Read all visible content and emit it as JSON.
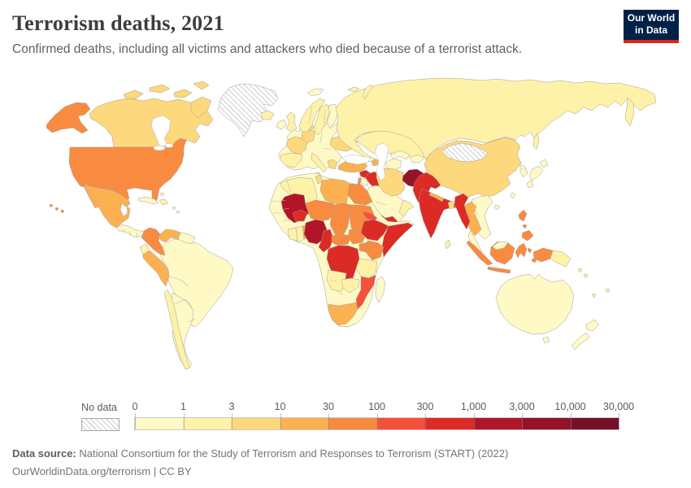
{
  "header": {
    "title": "Terrorism deaths, 2021",
    "subtitle": "Confirmed deaths, including all victims and attackers who died because of a terrorist attack."
  },
  "logo": {
    "line1": "Our World",
    "line2": "in Data",
    "bg": "#002147",
    "accent": "#e02314"
  },
  "legend": {
    "no_data_label": "No data",
    "ticks": [
      "0",
      "1",
      "3",
      "10",
      "30",
      "100",
      "300",
      "1,000",
      "3,000",
      "10,000",
      "30,000"
    ],
    "bins": [
      {
        "range": "0-1",
        "color": "#FFF9C5"
      },
      {
        "range": "1-3",
        "color": "#FEF2A8"
      },
      {
        "range": "3-10",
        "color": "#FDD87C"
      },
      {
        "range": "10-30",
        "color": "#FCB150"
      },
      {
        "range": "30-100",
        "color": "#F98B40"
      },
      {
        "range": "100-300",
        "color": "#F5503B"
      },
      {
        "range": "300-1,000",
        "color": "#DC2B25"
      },
      {
        "range": "1,000-3,000",
        "color": "#B31528"
      },
      {
        "range": "3,000-10,000",
        "color": "#951228"
      },
      {
        "range": "10,000-30,000",
        "color": "#771129"
      }
    ],
    "no_data_pattern": {
      "stripe": "#d9d9d9",
      "background": "#ffffff"
    }
  },
  "chart_data": {
    "type": "choropleth_map",
    "title": "Terrorism deaths, 2021",
    "unit": "deaths",
    "year": 2021,
    "scale": "log bins",
    "bin_ranges": [
      "0-1",
      "1-3",
      "3-10",
      "10-30",
      "30-100",
      "100-300",
      "300-1,000",
      "1,000-3,000",
      "3,000-10,000",
      "10,000-30,000"
    ],
    "countries": {
      "afghanistan": 8,
      "nigeria": 7,
      "mali": 7,
      "pakistan": 6,
      "india": 6,
      "iraq": 6,
      "syria": 6,
      "yemen": 6,
      "myanmar": 6,
      "somalia": 6,
      "ethiopia": 6,
      "democratic_republic_of_congo": 6,
      "burkina_faso": 6,
      "cameroon": 6,
      "mozambique": 5,
      "eritrea": 5,
      "usa": 4,
      "colombia": 4,
      "egypt": 4,
      "sudan": 4,
      "south_sudan": 4,
      "chad": 4,
      "niger": 4,
      "central_african_republic": 4,
      "kenya": 4,
      "uganda": 4,
      "indonesia": 4,
      "philippines": 4,
      "israel": 4,
      "mexico": 3,
      "peru": 3,
      "venezuela": 3,
      "turkey": 3,
      "libya": 3,
      "thailand": 3,
      "south_africa": 3,
      "nepal": 3,
      "azerbaijan": 3,
      "benin": 3,
      "canada": 2,
      "france": 2,
      "germany": 2,
      "denmark": 2,
      "ukraine": 2,
      "greece": 2,
      "tunisia": 2,
      "china": 2,
      "iran": 2,
      "bangladesh": 2,
      "united_kingdom": 1,
      "spain": 1,
      "italy": 1,
      "norway": 1,
      "sweden": 1,
      "iceland": 1,
      "russia": 1,
      "kazakhstan": 1,
      "algeria": 1,
      "ecuador": 1,
      "chile": 1,
      "dominican_republic": 1,
      "oman": 1,
      "sri_lanka": 1,
      "tanzania": 1,
      "angola": 1,
      "zambia": 1,
      "ghana": 1,
      "ivory_coast": 1,
      "papua_new_guinea": 1,
      "ireland": 0,
      "finland": 0,
      "brazil": 0,
      "argentina": 0,
      "australia": 0,
      "new_zealand": 0,
      "saudi_arabia": 0,
      "jordan": 0,
      "georgia": 0,
      "turkmenistan": 0,
      "uzbekistan": 0,
      "kyrgyzstan": 0,
      "japan": 0,
      "south_korea": 0,
      "vietnam_laos_cambodia": 0,
      "malaysia": 0,
      "cuba": 0,
      "central_america": 0,
      "madagascar": 0,
      "svalbard": 0,
      "other_europe": 0,
      "other_africa": 0,
      "arctic_islands_canada": 2,
      "greenland": "no-data",
      "mongolia": "no-data"
    },
    "no_data": [
      "Greenland",
      "Mongolia"
    ]
  },
  "footer": {
    "source_label": "Data source:",
    "source_text": "National Consortium for the Study of Terrorism and Responses to Terrorism (START) (2022)",
    "link": "OurWorldinData.org/terrorism",
    "separator": "|",
    "license": "CC BY"
  }
}
